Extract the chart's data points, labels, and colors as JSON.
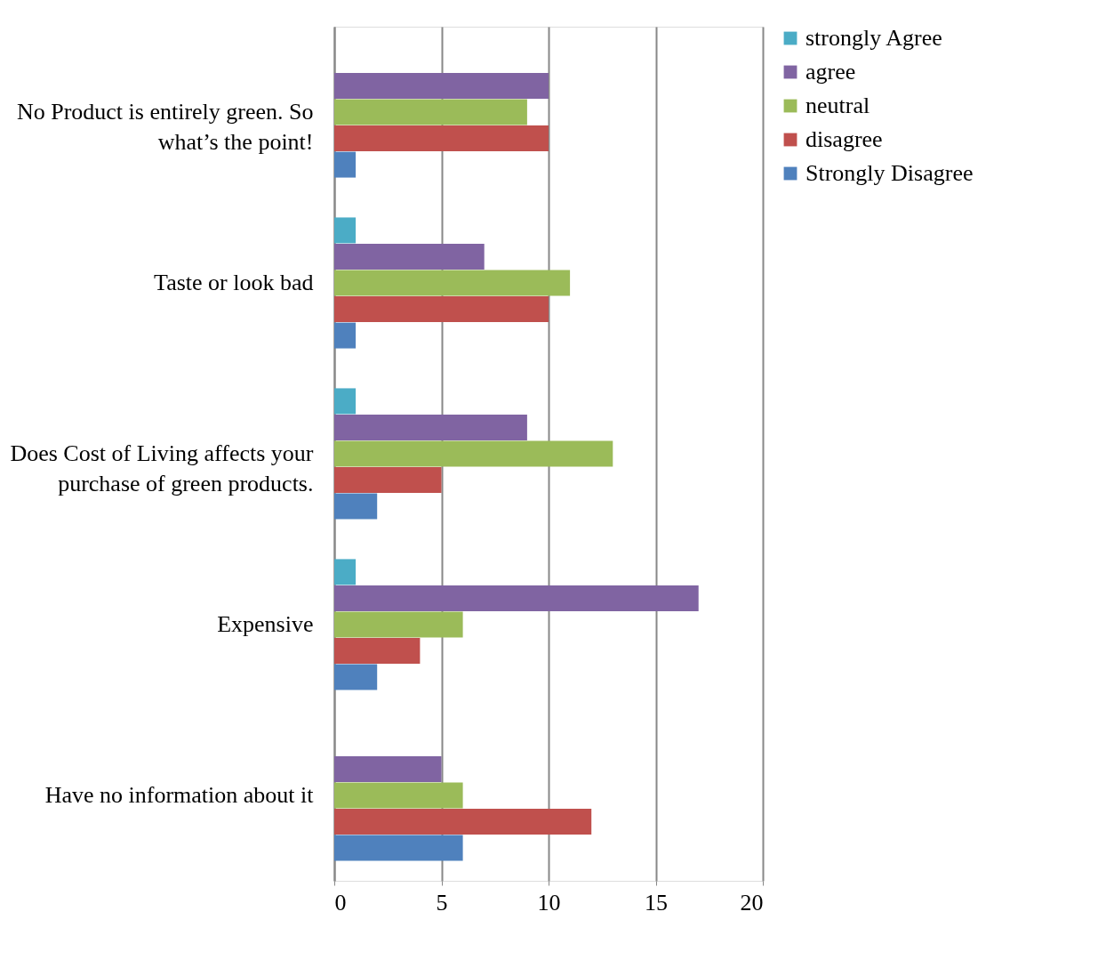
{
  "chart_data": {
    "type": "bar",
    "orientation": "horizontal",
    "categories": [
      "No Product is entirely green. So\nwhat’s the point!",
      "Taste or look bad",
      "Does Cost of Living affects your\npurchase of green products.",
      "Expensive",
      "Have no information about it"
    ],
    "series": [
      {
        "name": "strongly Agree",
        "color": "#4bacc6",
        "values": [
          0,
          1,
          1,
          1,
          0
        ]
      },
      {
        "name": "agree",
        "color": "#8064a2",
        "values": [
          10,
          7,
          9,
          17,
          5
        ]
      },
      {
        "name": "neutral",
        "color": "#9bbb59",
        "values": [
          9,
          11,
          13,
          6,
          6
        ]
      },
      {
        "name": "disagree",
        "color": "#c0504d",
        "values": [
          10,
          10,
          5,
          4,
          12
        ]
      },
      {
        "name": "Strongly Disagree",
        "color": "#4f81bd",
        "values": [
          1,
          1,
          2,
          2,
          6
        ]
      }
    ],
    "xlim": [
      0,
      20
    ],
    "xticks": [
      0,
      5,
      10,
      15,
      20
    ],
    "grid": "x",
    "legend": "right"
  }
}
